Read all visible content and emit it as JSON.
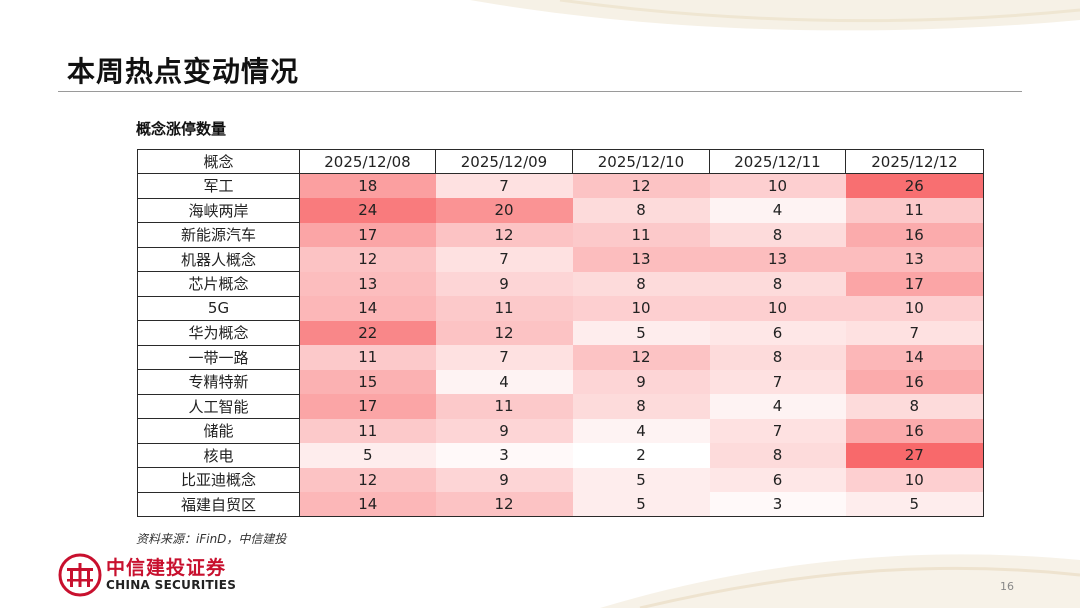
{
  "page": {
    "title": "本周热点变动情况",
    "subtitle": "概念涨停数量",
    "source": "资料来源：iFinD，中信建投",
    "page_number": "16"
  },
  "brand": {
    "name_cn": "中信建投证券",
    "name_en": "CHINA SECURITIES",
    "color": "#c8102e"
  },
  "chart_data": {
    "type": "heatmap",
    "title": "概念涨停数量",
    "row_header": "概念",
    "columns": [
      "2025/12/08",
      "2025/12/09",
      "2025/12/10",
      "2025/12/11",
      "2025/12/12"
    ],
    "rows": [
      {
        "name": "军工",
        "values": [
          18,
          7,
          12,
          10,
          26
        ]
      },
      {
        "name": "海峡两岸",
        "values": [
          24,
          20,
          8,
          4,
          11
        ]
      },
      {
        "name": "新能源汽车",
        "values": [
          17,
          12,
          11,
          8,
          16
        ]
      },
      {
        "name": "机器人概念",
        "values": [
          12,
          7,
          13,
          13,
          13
        ]
      },
      {
        "name": "芯片概念",
        "values": [
          13,
          9,
          8,
          8,
          17
        ]
      },
      {
        "name": "5G",
        "values": [
          14,
          11,
          10,
          10,
          10
        ]
      },
      {
        "name": "华为概念",
        "values": [
          22,
          12,
          5,
          6,
          7
        ]
      },
      {
        "name": "一带一路",
        "values": [
          11,
          7,
          12,
          8,
          14
        ]
      },
      {
        "name": "专精特新",
        "values": [
          15,
          4,
          9,
          7,
          16
        ]
      },
      {
        "name": "人工智能",
        "values": [
          17,
          11,
          8,
          4,
          8
        ]
      },
      {
        "name": "储能",
        "values": [
          11,
          9,
          4,
          7,
          16
        ]
      },
      {
        "name": "核电",
        "values": [
          5,
          3,
          2,
          8,
          27
        ]
      },
      {
        "name": "比亚迪概念",
        "values": [
          12,
          9,
          5,
          6,
          10
        ]
      },
      {
        "name": "福建自贸区",
        "values": [
          14,
          12,
          5,
          3,
          5
        ]
      }
    ],
    "color_scale": {
      "low": "#ffffff",
      "high": "#f8696b"
    }
  }
}
